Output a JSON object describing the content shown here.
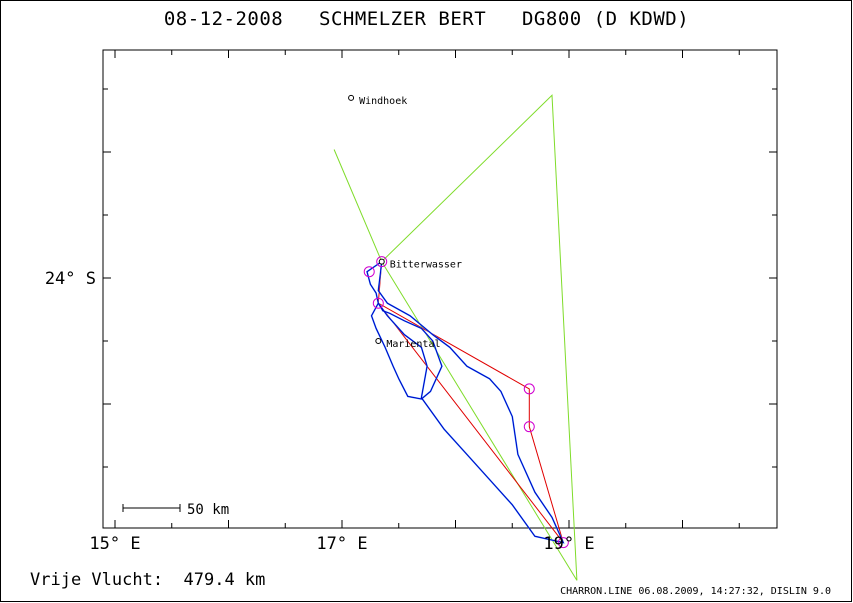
{
  "title": "08-12-2008   SCHMELZER BERT   DG800 (D KDWD)",
  "axes": {
    "x_ticks": [
      {
        "label": "15° E",
        "lon": 15
      },
      {
        "label": "17° E",
        "lon": 17
      },
      {
        "label": "19° E",
        "lon": 19
      }
    ],
    "y_ticks": [
      {
        "label": "24° S",
        "lat": -24
      }
    ]
  },
  "places": [
    {
      "name": "Windhoek",
      "lon": 17.08,
      "lat": -22.57
    },
    {
      "name": "Bitterwasser",
      "lon": 17.35,
      "lat": -23.87
    },
    {
      "name": "Mariental",
      "lon": 17.32,
      "lat": -24.5
    }
  ],
  "scale_bar": {
    "label": "50 km"
  },
  "task_polygon": [
    [
      17.35,
      -23.87
    ],
    [
      16.93,
      -22.98
    ],
    [
      17.35,
      -23.87
    ],
    [
      18.85,
      -22.55
    ],
    [
      19.07,
      -26.4
    ],
    [
      17.35,
      -23.87
    ]
  ],
  "flight_path": [
    [
      17.35,
      -23.87
    ],
    [
      17.22,
      -23.95
    ],
    [
      17.25,
      -24.05
    ],
    [
      17.3,
      -24.12
    ],
    [
      17.32,
      -24.2
    ],
    [
      17.36,
      -24.26
    ],
    [
      17.42,
      -24.28
    ],
    [
      17.55,
      -24.34
    ],
    [
      17.7,
      -24.4
    ],
    [
      17.8,
      -24.5
    ],
    [
      17.88,
      -24.7
    ],
    [
      17.78,
      -24.9
    ],
    [
      17.7,
      -24.96
    ],
    [
      17.58,
      -24.94
    ],
    [
      17.5,
      -24.8
    ],
    [
      17.45,
      -24.7
    ],
    [
      17.38,
      -24.55
    ],
    [
      17.3,
      -24.4
    ],
    [
      17.26,
      -24.3
    ],
    [
      17.32,
      -24.2
    ],
    [
      17.4,
      -24.3
    ],
    [
      17.55,
      -24.45
    ],
    [
      17.7,
      -24.55
    ],
    [
      17.75,
      -24.7
    ],
    [
      17.7,
      -24.95
    ],
    [
      17.9,
      -25.2
    ],
    [
      18.1,
      -25.4
    ],
    [
      18.3,
      -25.6
    ],
    [
      18.5,
      -25.8
    ],
    [
      18.7,
      -26.05
    ],
    [
      18.95,
      -26.1
    ],
    [
      18.85,
      -25.9
    ],
    [
      18.7,
      -25.7
    ],
    [
      18.55,
      -25.4
    ],
    [
      18.5,
      -25.1
    ],
    [
      18.4,
      -24.9
    ],
    [
      18.3,
      -24.8
    ],
    [
      18.1,
      -24.7
    ],
    [
      17.95,
      -24.55
    ],
    [
      17.8,
      -24.45
    ],
    [
      17.6,
      -24.3
    ],
    [
      17.4,
      -24.2
    ],
    [
      17.32,
      -24.1
    ],
    [
      17.34,
      -23.95
    ],
    [
      17.35,
      -23.87
    ]
  ],
  "turnpoints": [
    [
      17.24,
      -23.95
    ],
    [
      17.35,
      -23.87
    ],
    [
      17.32,
      -24.2
    ],
    [
      18.65,
      -24.88
    ],
    [
      18.65,
      -25.18
    ],
    [
      18.95,
      -26.1
    ]
  ],
  "free_distance_label": "Vrije Vlucht:  479.4 km",
  "credit": "CHARRON.LINE 06.08.2009, 14:27:32, DISLIN 9.0",
  "colors": {
    "task": "#7fdc2a",
    "track": "#0000c8",
    "track_alt": "#3da2ff",
    "turnpoint": "#d000d0",
    "leg": "#e00000"
  }
}
